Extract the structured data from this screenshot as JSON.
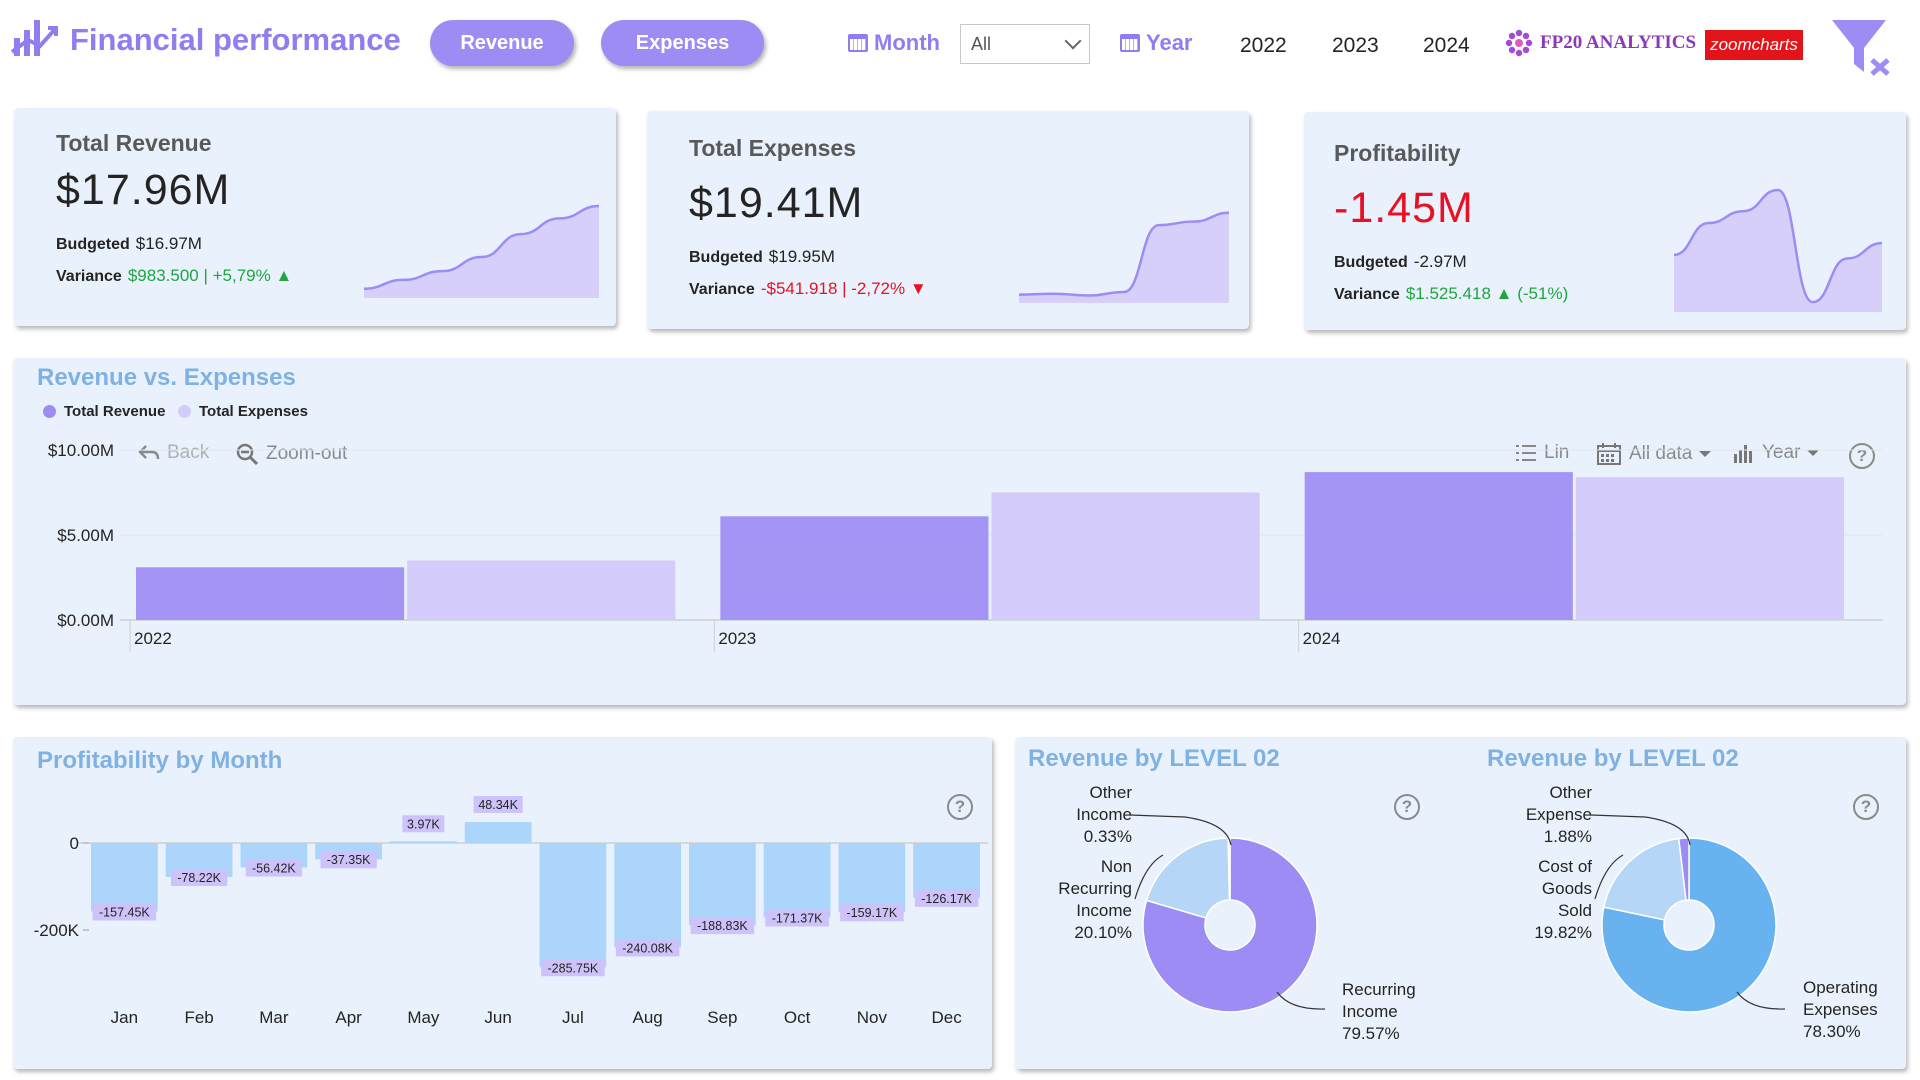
{
  "header": {
    "title": "Financial performance",
    "buttons": {
      "revenue": "Revenue",
      "expenses": "Expenses"
    },
    "month_label": "Month",
    "month_value": "All",
    "year_label": "Year",
    "years": [
      "2022",
      "2023",
      "2024"
    ],
    "fp20_logo": "FP20 ANALYTICS",
    "zoomcharts_logo": "zoomcharts",
    "icons": {
      "logo": "bar-chart-up-icon",
      "calendar": "calendar-icon",
      "clear_filter": "clear-filter-icon"
    }
  },
  "kpis": {
    "revenue": {
      "title": "Total Revenue",
      "value": "$17.96M",
      "budget_label": "Budgeted",
      "budget": "$16.97M",
      "variance_label": "Variance",
      "variance": "$983.500 | +5,79%",
      "variance_arrow": "▲",
      "trend": [
        0.06,
        0.16,
        0.26,
        0.42,
        0.68,
        0.86,
        1.0
      ]
    },
    "expenses": {
      "title": "Total Expenses",
      "value": "$19.41M",
      "budget_label": "Budgeted",
      "budget": "$19.95M",
      "variance_label": "Variance",
      "variance": "-$541.918 | -2,72%",
      "variance_arrow": "▼",
      "trend": [
        0.05,
        0.06,
        0.04,
        0.08,
        0.84,
        0.88,
        0.98
      ]
    },
    "profitability": {
      "title": "Profitability",
      "value": "-1.45M",
      "budget_label": "Budgeted",
      "budget": "-2.97M",
      "variance_label": "Variance",
      "variance": "$1.525.418",
      "variance_arrow": "▲",
      "variance_pct": "(-51%)",
      "trend": [
        0.45,
        0.72,
        0.82,
        1.0,
        0.05,
        0.42,
        0.55
      ]
    }
  },
  "rev_vs_exp": {
    "title": "Revenue vs. Expenses",
    "legend": [
      "Total Revenue",
      "Total Expenses"
    ],
    "toolbar": {
      "back": "Back",
      "zoom_out": "Zoom-out",
      "lin": "Lin",
      "all_data": "All data",
      "year": "Year"
    },
    "help": "?"
  },
  "profit_month": {
    "title": "Profitability by Month",
    "help": "?"
  },
  "pie_rev": {
    "title": "Revenue by LEVEL 02",
    "help": "?",
    "labels": {
      "a": [
        "Other",
        "Income",
        "0.33%"
      ],
      "b": [
        "Non",
        "Recurring",
        "Income",
        "20.10%"
      ],
      "c": [
        "Recurring",
        "Income",
        "79.57%"
      ]
    }
  },
  "pie_exp": {
    "title": "Revenue by LEVEL 02",
    "help": "?",
    "labels": {
      "a": [
        "Other",
        "Expense",
        "1.88%"
      ],
      "b": [
        "Cost of",
        "Goods",
        "Sold",
        "19.82%"
      ],
      "c": [
        "Operating",
        "Expenses",
        "78.30%"
      ]
    }
  },
  "colors": {
    "revenue": "#a394f5",
    "expenses": "#d3cbfa",
    "profit_bar": "#acd5fb",
    "label_bg": "#cdc3fa",
    "pie_rev_main": "#9d8cf3",
    "pie_exp_main": "#68b3ef",
    "pie_light": "#b6d6f7"
  },
  "chart_data": [
    {
      "type": "bar",
      "title": "Revenue vs. Expenses",
      "categories": [
        "2022",
        "2023",
        "2024"
      ],
      "series": [
        {
          "name": "Total Revenue",
          "values": [
            3.1,
            6.1,
            8.7
          ]
        },
        {
          "name": "Total Expenses",
          "values": [
            3.5,
            7.5,
            8.4
          ]
        }
      ],
      "y_tick_labels": [
        "$10.00M",
        "$5.00M",
        "$0.00M"
      ],
      "y_ticks": [
        10,
        5,
        0
      ],
      "ylim": [
        0,
        10
      ],
      "legend": "top-left",
      "grid": true
    },
    {
      "type": "bar",
      "title": "Profitability by Month",
      "categories": [
        "Jan",
        "Feb",
        "Mar",
        "Apr",
        "May",
        "Jun",
        "Jul",
        "Aug",
        "Sep",
        "Oct",
        "Nov",
        "Dec"
      ],
      "values": [
        -157.45,
        -78.22,
        -56.42,
        -37.35,
        3.97,
        48.34,
        -285.75,
        -240.08,
        -188.83,
        -171.37,
        -159.17,
        -126.17
      ],
      "data_labels": [
        "-157.45K",
        "-78.22K",
        "-56.42K",
        "-37.35K",
        "3.97K",
        "48.34K",
        "-285.75K",
        "-240.08K",
        "-188.83K",
        "-171.37K",
        "-159.17K",
        "-126.17K"
      ],
      "y_tick_labels": [
        "0",
        "-200K"
      ],
      "y_ticks": [
        0,
        -200
      ],
      "ylim": [
        -300,
        60
      ],
      "grid": false
    },
    {
      "type": "pie",
      "title": "Revenue by LEVEL 02",
      "labels": [
        "Recurring Income",
        "Non Recurring Income",
        "Other Income"
      ],
      "values": [
        79.57,
        20.1,
        0.33
      ]
    },
    {
      "type": "pie",
      "title": "Revenue by LEVEL 02",
      "labels": [
        "Operating Expenses",
        "Cost of Goods Sold",
        "Other Expense"
      ],
      "values": [
        78.3,
        19.82,
        1.88
      ]
    }
  ]
}
